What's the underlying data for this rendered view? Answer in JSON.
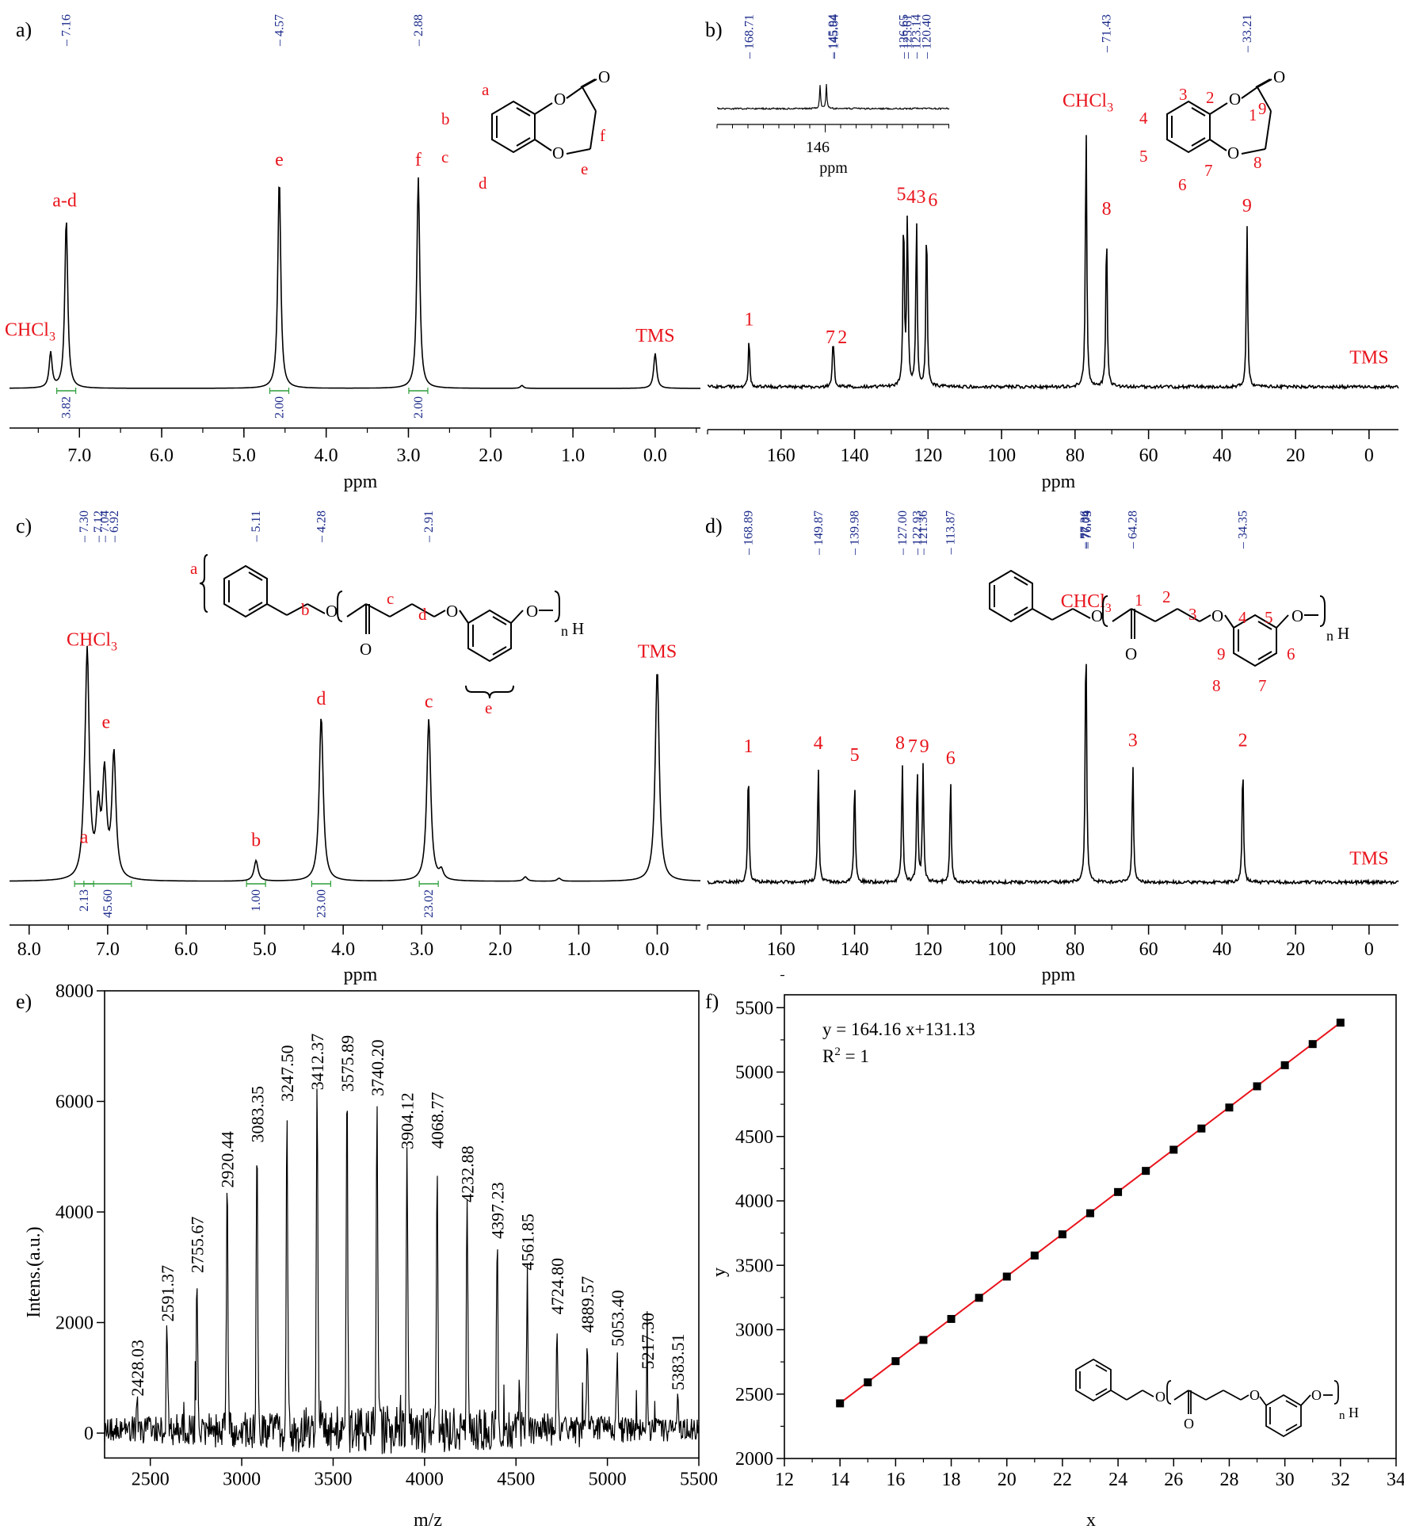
{
  "colors": {
    "spectrum": "#000000",
    "label": "#e8141c",
    "peaklist": "#1b2a8a",
    "integral": "#2e9e3a",
    "fit": "#e8141c"
  },
  "chart_data": [
    {
      "panel": "a)",
      "type": "line",
      "xlabel": "ppm",
      "xlim": [
        7.85,
        -0.55
      ],
      "ticks": [
        {
          "v": 7.0,
          "t": "7.0"
        },
        {
          "v": 6.0,
          "t": "6.0"
        },
        {
          "v": 5.0,
          "t": "5.0"
        },
        {
          "v": 4.0,
          "t": "4.0"
        },
        {
          "v": 3.0,
          "t": "3.0"
        },
        {
          "v": 2.0,
          "t": "2.0"
        },
        {
          "v": 1.0,
          "t": "1.0"
        },
        {
          "v": 0.0,
          "t": "0.0"
        }
      ],
      "peaks": [
        {
          "x": 7.35,
          "h": 0.12
        },
        {
          "x": 7.16,
          "h": 0.58
        },
        {
          "x": 4.57,
          "h": 0.72
        },
        {
          "x": 2.88,
          "h": 0.72
        },
        {
          "x": 0.0,
          "h": 0.12
        },
        {
          "x": 1.62,
          "h": 0.01
        }
      ],
      "peak_list": [
        {
          "x": 7.16,
          "t": "7.16"
        },
        {
          "x": 4.57,
          "t": "4.57"
        },
        {
          "x": 2.88,
          "t": "2.88"
        }
      ],
      "labels": [
        {
          "x": 7.6,
          "h": 0.18,
          "t": "CHCl",
          "sub": "3"
        },
        {
          "x": 7.18,
          "h": 0.62,
          "t": "a-d"
        },
        {
          "x": 4.57,
          "h": 0.76,
          "t": "e"
        },
        {
          "x": 2.88,
          "h": 0.76,
          "t": "f"
        },
        {
          "x": 0.0,
          "h": 0.16,
          "t": "TMS"
        }
      ],
      "integrals": [
        {
          "x": 7.16,
          "t": "3.82"
        },
        {
          "x": 4.57,
          "t": "2.00"
        },
        {
          "x": 2.88,
          "t": "2.00"
        }
      ]
    },
    {
      "panel": "b)",
      "type": "line",
      "xlabel": "ppm",
      "xlim": [
        180,
        -8
      ],
      "ticks": [
        {
          "v": 160,
          "t": "160"
        },
        {
          "v": 140,
          "t": "140"
        },
        {
          "v": 120,
          "t": "120"
        },
        {
          "v": 100,
          "t": "100"
        },
        {
          "v": 80,
          "t": "80"
        },
        {
          "v": 60,
          "t": "60"
        },
        {
          "v": 40,
          "t": "40"
        },
        {
          "v": 20,
          "t": "20"
        },
        {
          "v": 0,
          "t": "0"
        }
      ],
      "peaks": [
        {
          "x": 168.71,
          "h": 0.17
        },
        {
          "x": 145.94,
          "h": 0.1
        },
        {
          "x": 145.64,
          "h": 0.1
        },
        {
          "x": 126.65,
          "h": 0.6
        },
        {
          "x": 125.61,
          "h": 0.6
        },
        {
          "x": 123.14,
          "h": 0.59
        },
        {
          "x": 120.4,
          "h": 0.58
        },
        {
          "x": 77.0,
          "h": 0.92
        },
        {
          "x": 71.43,
          "h": 0.55
        },
        {
          "x": 33.21,
          "h": 0.56
        }
      ],
      "peak_list": [
        {
          "x": 168.71,
          "t": "168.71"
        },
        {
          "x": 145.94,
          "t": "145.94"
        },
        {
          "x": 145.64,
          "t": "145.64"
        },
        {
          "x": 126.65,
          "t": "126.65"
        },
        {
          "x": 125.61,
          "t": "125.61"
        },
        {
          "x": 123.14,
          "t": "123.14"
        },
        {
          "x": 120.4,
          "t": "120.40"
        },
        {
          "x": 71.43,
          "t": "71.43"
        },
        {
          "x": 33.21,
          "t": "33.21"
        }
      ],
      "labels": [
        {
          "x": 168.71,
          "h": 0.21,
          "t": "1"
        },
        {
          "x": 146.6,
          "h": 0.15,
          "t": "7"
        },
        {
          "x": 143.3,
          "h": 0.15,
          "t": "2"
        },
        {
          "x": 127.3,
          "h": 0.64,
          "t": "5"
        },
        {
          "x": 124.6,
          "h": 0.63,
          "t": "4"
        },
        {
          "x": 121.9,
          "h": 0.63,
          "t": "3"
        },
        {
          "x": 118.7,
          "h": 0.62,
          "t": "6"
        },
        {
          "x": 71.43,
          "h": 0.59,
          "t": "8"
        },
        {
          "x": 33.21,
          "h": 0.6,
          "t": "9"
        },
        {
          "x": 76.5,
          "h": 0.96,
          "t": "CHCl",
          "sub": "3"
        },
        {
          "x": 0,
          "h": 0.08,
          "t": "TMS"
        }
      ],
      "inset_ticklabel": "146",
      "inset_xlabel": "ppm"
    },
    {
      "panel": "c)",
      "type": "line",
      "xlabel": "ppm",
      "xlim": [
        8.25,
        -0.55
      ],
      "ticks": [
        {
          "v": 8.0,
          "t": "8.0"
        },
        {
          "v": 7.0,
          "t": "7.0"
        },
        {
          "v": 6.0,
          "t": "6.0"
        },
        {
          "v": 5.0,
          "t": "5.0"
        },
        {
          "v": 4.0,
          "t": "4.0"
        },
        {
          "v": 3.0,
          "t": "3.0"
        },
        {
          "v": 2.0,
          "t": "2.0"
        },
        {
          "v": 1.0,
          "t": "1.0"
        },
        {
          "v": 0.0,
          "t": "0.0"
        }
      ],
      "peaks": [
        {
          "x": 7.3,
          "h": 0.08
        },
        {
          "x": 7.26,
          "h": 0.75
        },
        {
          "x": 7.12,
          "h": 0.22
        },
        {
          "x": 7.04,
          "h": 0.34
        },
        {
          "x": 6.92,
          "h": 0.42
        },
        {
          "x": 5.11,
          "h": 0.07
        },
        {
          "x": 4.28,
          "h": 0.56
        },
        {
          "x": 2.91,
          "h": 0.55
        },
        {
          "x": 2.75,
          "h": 0.03
        },
        {
          "x": 1.68,
          "h": 0.015
        },
        {
          "x": 1.25,
          "h": 0.01
        },
        {
          "x": 0.0,
          "h": 0.72
        }
      ],
      "peak_list": [
        {
          "x": 7.3,
          "t": "7.30"
        },
        {
          "x": 7.12,
          "t": "7.12"
        },
        {
          "x": 7.04,
          "t": "7.04"
        },
        {
          "x": 6.92,
          "t": "6.92"
        },
        {
          "x": 5.11,
          "t": "5.11"
        },
        {
          "x": 4.28,
          "t": "4.28"
        },
        {
          "x": 2.91,
          "t": "2.91"
        }
      ],
      "labels": [
        {
          "x": 7.3,
          "h": 0.13,
          "t": "a"
        },
        {
          "x": 7.2,
          "h": 0.8,
          "t": "CHCl",
          "sub": "3"
        },
        {
          "x": 7.02,
          "h": 0.52,
          "t": "e"
        },
        {
          "x": 5.11,
          "h": 0.12,
          "t": "b"
        },
        {
          "x": 4.28,
          "h": 0.6,
          "t": "d"
        },
        {
          "x": 2.91,
          "h": 0.59,
          "t": "c"
        },
        {
          "x": 0.0,
          "h": 0.76,
          "t": "TMS"
        }
      ],
      "integrals": [
        {
          "x": 7.3,
          "t": "2.13"
        },
        {
          "x": 7.0,
          "t": "45.60"
        },
        {
          "x": 5.11,
          "t": "1.00"
        },
        {
          "x": 4.28,
          "t": "23.00"
        },
        {
          "x": 2.91,
          "t": "23.02"
        }
      ]
    },
    {
      "panel": "d)",
      "type": "line",
      "xlabel": "ppm",
      "xlim": [
        180,
        -8
      ],
      "ticks": [
        {
          "v": 160,
          "t": "160"
        },
        {
          "v": 140,
          "t": "140"
        },
        {
          "v": 120,
          "t": "120"
        },
        {
          "v": 100,
          "t": "100"
        },
        {
          "v": 80,
          "t": "80"
        },
        {
          "v": 60,
          "t": "60"
        },
        {
          "v": 40,
          "t": "40"
        },
        {
          "v": 20,
          "t": "20"
        },
        {
          "v": 0,
          "t": "0"
        }
      ],
      "peaks": [
        {
          "x": 168.89,
          "h": 0.4
        },
        {
          "x": 149.87,
          "h": 0.4
        },
        {
          "x": 139.98,
          "h": 0.36
        },
        {
          "x": 127.0,
          "h": 0.41
        },
        {
          "x": 122.93,
          "h": 0.39
        },
        {
          "x": 121.36,
          "h": 0.4
        },
        {
          "x": 113.87,
          "h": 0.35
        },
        {
          "x": 77.04,
          "h": 0.88
        },
        {
          "x": 64.28,
          "h": 0.41
        },
        {
          "x": 34.35,
          "h": 0.41
        }
      ],
      "peak_list": [
        {
          "x": 168.89,
          "t": "168.89"
        },
        {
          "x": 149.87,
          "t": "149.87"
        },
        {
          "x": 139.98,
          "t": "139.98"
        },
        {
          "x": 127.0,
          "t": "127.00"
        },
        {
          "x": 122.93,
          "t": "122.93"
        },
        {
          "x": 121.36,
          "t": "121.36"
        },
        {
          "x": 113.87,
          "t": "113.87"
        },
        {
          "x": 77.36,
          "t": "77.36"
        },
        {
          "x": 77.04,
          "t": "77.04"
        },
        {
          "x": 76.73,
          "t": "76.73"
        },
        {
          "x": 64.28,
          "t": "64.28"
        },
        {
          "x": 34.35,
          "t": "34.35"
        }
      ],
      "labels": [
        {
          "x": 168.89,
          "h": 0.44,
          "t": "1"
        },
        {
          "x": 149.87,
          "h": 0.45,
          "t": "4"
        },
        {
          "x": 139.98,
          "h": 0.41,
          "t": "5"
        },
        {
          "x": 127.6,
          "h": 0.45,
          "t": "8"
        },
        {
          "x": 124.2,
          "h": 0.44,
          "t": "7"
        },
        {
          "x": 121.0,
          "h": 0.44,
          "t": "9"
        },
        {
          "x": 113.87,
          "h": 0.4,
          "t": "6"
        },
        {
          "x": 77.0,
          "h": 0.93,
          "t": "CHCl",
          "sub": "3"
        },
        {
          "x": 64.28,
          "h": 0.46,
          "t": "3"
        },
        {
          "x": 34.35,
          "h": 0.46,
          "t": "2"
        },
        {
          "x": 0,
          "h": 0.06,
          "t": "TMS"
        }
      ]
    },
    {
      "panel": "e)",
      "type": "line",
      "xlabel": "m/z",
      "ylabel": "Intens.(a.u.)",
      "xlim": [
        2250,
        5500
      ],
      "ylim": [
        -450,
        8000
      ],
      "xticks": [
        2500,
        3000,
        3500,
        4000,
        4500,
        5000,
        5500
      ],
      "yticks": [
        0,
        2000,
        4000,
        6000,
        8000
      ],
      "peaks": [
        {
          "x": 2428.03,
          "y": 550,
          "t": "2428.03"
        },
        {
          "x": 2591.37,
          "y": 1900,
          "t": "2591.37"
        },
        {
          "x": 2755.67,
          "y": 2780,
          "t": "2755.67"
        },
        {
          "x": 2920.44,
          "y": 4320,
          "t": "2920.44"
        },
        {
          "x": 3083.35,
          "y": 5140,
          "t": "3083.35"
        },
        {
          "x": 3247.5,
          "y": 5880,
          "t": "3247.50"
        },
        {
          "x": 3412.37,
          "y": 6090,
          "t": "3412.37"
        },
        {
          "x": 3575.89,
          "y": 6060,
          "t": "3575.89"
        },
        {
          "x": 3740.2,
          "y": 5980,
          "t": "3740.20"
        },
        {
          "x": 3904.12,
          "y": 5020,
          "t": "3904.12"
        },
        {
          "x": 4068.77,
          "y": 5030,
          "t": "4068.77"
        },
        {
          "x": 4232.88,
          "y": 4060,
          "t": "4232.88"
        },
        {
          "x": 4397.23,
          "y": 3400,
          "t": "4397.23"
        },
        {
          "x": 4561.85,
          "y": 2830,
          "t": "4561.85"
        },
        {
          "x": 4724.8,
          "y": 2030,
          "t": "4724.80"
        },
        {
          "x": 4889.57,
          "y": 1700,
          "t": "4889.57"
        },
        {
          "x": 5053.4,
          "y": 1450,
          "t": "5053.40"
        },
        {
          "x": 5217.3,
          "y": 1040,
          "t": "5217.30"
        },
        {
          "x": 5383.51,
          "y": 660,
          "t": "5383.51"
        }
      ]
    },
    {
      "panel": "f)",
      "type": "scatter",
      "xlabel": "x",
      "ylabel": "y",
      "xlim": [
        12,
        34
      ],
      "ylim": [
        2000,
        5600
      ],
      "xticks": [
        12,
        14,
        16,
        18,
        20,
        22,
        24,
        26,
        28,
        30,
        32,
        34
      ],
      "yticks": [
        2000,
        2500,
        3000,
        3500,
        4000,
        4500,
        5000,
        5500
      ],
      "x": [
        14,
        15,
        16,
        17,
        18,
        19,
        20,
        21,
        22,
        23,
        24,
        25,
        26,
        27,
        28,
        29,
        30,
        31,
        32
      ],
      "y": [
        2428.03,
        2591.37,
        2755.67,
        2920.44,
        3083.35,
        3247.5,
        3412.37,
        3575.89,
        3740.2,
        3904.12,
        4068.77,
        4232.88,
        4397.23,
        4561.85,
        4724.8,
        4889.57,
        5053.4,
        5217.3,
        5383.51
      ],
      "fit": {
        "slope": 164.16,
        "intercept": 131.13
      },
      "equation": "y = 164.16 x+131.13",
      "r2_prefix": "R",
      "r2_sup": "2",
      "r2_suffix": " = 1"
    }
  ],
  "structures": {
    "a": {
      "ring": [
        "a",
        "b",
        "c",
        "d"
      ],
      "chain": [
        "e",
        "f"
      ],
      "o": "O"
    },
    "b": {
      "ring": [
        "2",
        "3",
        "4",
        "5",
        "6",
        "7"
      ],
      "chain": [
        "1",
        "9",
        "8"
      ],
      "o": "O"
    },
    "c": {
      "groups": [
        "a",
        "b",
        "c",
        "d",
        "e"
      ],
      "n": "n",
      "h": "H",
      "o": "O"
    },
    "d": {
      "nums": [
        "1",
        "2",
        "3",
        "4",
        "5",
        "6",
        "7",
        "8",
        "9"
      ],
      "n": "n",
      "h": "H",
      "o": "O"
    },
    "f": {
      "n": "n",
      "h": "H",
      "o": "O"
    }
  }
}
